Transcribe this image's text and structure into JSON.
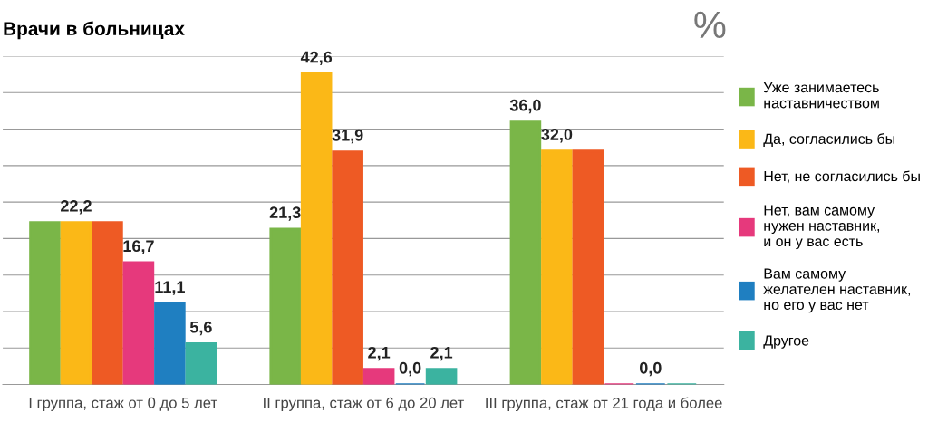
{
  "chart_data": {
    "type": "bar",
    "title": "Врачи в больницах",
    "categories": [
      "I группа, стаж от 0 до 5 лет",
      "II группа, стаж от 6 до 20 лет",
      "III группа, стаж от 21 года и более"
    ],
    "series": [
      {
        "name": "Уже занимаетесь\nнаставничеством",
        "color": "#7ab648",
        "values": [
          22.2,
          21.3,
          36.0
        ],
        "value_labels": [
          null,
          "21,3",
          "36,0"
        ]
      },
      {
        "name": "Да, согласились бы",
        "color": "#fbb817",
        "values": [
          22.2,
          42.6,
          32.0
        ],
        "value_labels": [
          "22,2",
          "42,6",
          "32,0"
        ]
      },
      {
        "name": "Нет, не согласились бы",
        "color": "#ee5a24",
        "values": [
          22.2,
          31.9,
          32.0
        ],
        "value_labels": [
          null,
          "31,9",
          null
        ]
      },
      {
        "name": "Нет, вам самому\nнужен наставник,\nи он у вас есть",
        "color": "#e6397c",
        "values": [
          16.7,
          2.1,
          0.0
        ],
        "value_labels": [
          "16,7",
          "2,1",
          null
        ]
      },
      {
        "name": "Вам самому\nжелателен наставник,\nно его у вас нет",
        "color": "#1f7fc1",
        "values": [
          11.1,
          0.0,
          0.0
        ],
        "value_labels": [
          "11,1",
          "0,0",
          "0,0"
        ]
      },
      {
        "name": "Другое",
        "color": "#3bb3a0",
        "values": [
          5.6,
          2.1,
          0.0
        ],
        "value_labels": [
          "5,6",
          "2,1",
          null
        ]
      }
    ],
    "annotations": [
      "%"
    ],
    "ylim": [
      0,
      45
    ],
    "yticks": [
      {
        "value": 5,
        "label": null
      },
      {
        "value": 10,
        "label": null
      },
      {
        "value": 15,
        "label": null
      },
      {
        "value": 20,
        "label": null
      },
      {
        "value": 25,
        "label": null
      },
      {
        "value": 30,
        "label": null
      },
      {
        "value": 35,
        "label": null
      },
      {
        "value": 40,
        "label": null
      },
      {
        "value": 45,
        "label": null
      }
    ],
    "tick_labels": "x",
    "grid": "y",
    "legend": "right"
  }
}
